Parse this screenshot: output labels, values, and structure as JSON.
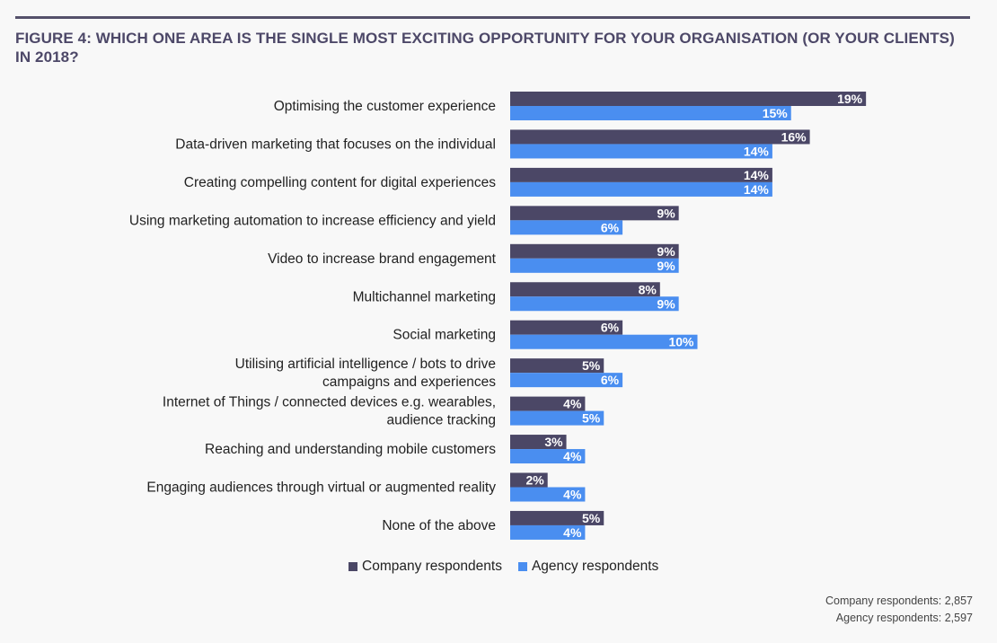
{
  "title": "FIGURE 4: WHICH ONE AREA IS THE SINGLE MOST EXCITING OPPORTUNITY FOR YOUR ORGANISATION (OR YOUR CLIENTS) IN 2018?",
  "legend": {
    "company": "Company respondents",
    "agency": "Agency respondents"
  },
  "notes": {
    "company_count": "Company respondents: 2,857",
    "agency_count": "Agency respondents: 2,597"
  },
  "colors": {
    "company": "#4b4766",
    "agency": "#4a8ef0"
  },
  "chart_data": {
    "type": "bar",
    "orientation": "horizontal",
    "categories": [
      [
        "Optimising the customer experience"
      ],
      [
        "Data-driven marketing that focuses on the individual"
      ],
      [
        "Creating compelling content for digital experiences"
      ],
      [
        "Using marketing automation to increase efficiency and yield"
      ],
      [
        "Video to increase brand engagement"
      ],
      [
        "Multichannel marketing"
      ],
      [
        "Social marketing"
      ],
      [
        "Utilising artificial intelligence / bots to drive",
        "campaigns and experiences"
      ],
      [
        "Internet of Things / connected devices e.g. wearables,",
        "audience tracking"
      ],
      [
        "Reaching and understanding mobile customers"
      ],
      [
        "Engaging audiences through virtual or augmented reality"
      ],
      [
        "None of the above"
      ]
    ],
    "series": [
      {
        "name": "Company respondents",
        "values": [
          19,
          16,
          14,
          9,
          9,
          8,
          6,
          5,
          4,
          3,
          2,
          5
        ]
      },
      {
        "name": "Agency respondents",
        "values": [
          15,
          14,
          14,
          6,
          9,
          9,
          10,
          6,
          5,
          4,
          4,
          4
        ]
      }
    ],
    "value_suffix": "%",
    "legend_position": "bottom-center",
    "grid": false
  }
}
